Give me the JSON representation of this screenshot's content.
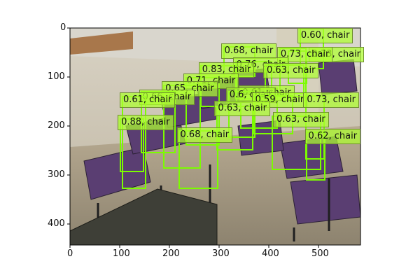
{
  "figure": {
    "xticks": [
      "0",
      "100",
      "200",
      "300",
      "400",
      "500"
    ],
    "yticks": [
      "0",
      "100",
      "200",
      "300",
      "400"
    ]
  },
  "detections": [
    {
      "label": "0.60, chair",
      "bx": 462,
      "by": 0,
      "bw": 50,
      "bh": 84,
      "lx": 458,
      "ly": 0
    },
    {
      "label": "0.73, chair",
      "bx": 438,
      "by": 45,
      "bw": 40,
      "bh": 68,
      "lx": 480,
      "ly": 38
    },
    {
      "label": "0.73, chair",
      "bx": 421,
      "by": 40,
      "bw": 55,
      "bh": 100,
      "lx": 417,
      "ly": 38
    },
    {
      "label": "0.68, chair",
      "bx": 309,
      "by": 37,
      "bw": 65,
      "bh": 62,
      "lx": 304,
      "ly": 31
    },
    {
      "label": "0.76, chair",
      "bx": 332,
      "by": 66,
      "bw": 75,
      "bh": 79,
      "lx": 328,
      "ly": 59
    },
    {
      "label": "0.63, chair",
      "bx": 392,
      "by": 74,
      "bw": 80,
      "bh": 60,
      "lx": 389,
      "ly": 71
    },
    {
      "label": "0.83, chair",
      "bx": 262,
      "by": 75,
      "bw": 75,
      "bh": 85,
      "lx": 259,
      "ly": 69
    },
    {
      "label": "0.71, chair",
      "bx": 232,
      "by": 99,
      "bw": 70,
      "bh": 140,
      "lx": 228,
      "ly": 92
    },
    {
      "label": "0.65, chair",
      "bx": 188,
      "by": 115,
      "bw": 75,
      "bh": 170,
      "lx": 185,
      "ly": 108
    },
    {
      "label": "0.61, chair",
      "bx": 343,
      "by": 121,
      "bw": 75,
      "bh": 84,
      "lx": 340,
      "ly": 116
    },
    {
      "label": "0.6, chair",
      "bx": 318,
      "by": 128,
      "bw": 56,
      "bh": 95,
      "lx": 314,
      "ly": 120
    },
    {
      "label": "0.59, chair",
      "bx": 370,
      "by": 136,
      "bw": 80,
      "bh": 80,
      "lx": 366,
      "ly": 130
    },
    {
      "label": "0.73, chair",
      "bx": 473,
      "by": 136,
      "bw": 40,
      "bh": 131,
      "lx": 470,
      "ly": 130
    },
    {
      "label": "0.66, chair",
      "bx": 143,
      "by": 128,
      "bw": 70,
      "bh": 126,
      "lx": 139,
      "ly": 125
    },
    {
      "label": "0.61, chair",
      "bx": 104,
      "by": 137,
      "bw": 50,
      "bh": 190,
      "lx": 100,
      "ly": 130
    },
    {
      "label": "0.63, chair",
      "bx": 295,
      "by": 157,
      "bw": 75,
      "bh": 91,
      "lx": 291,
      "ly": 148
    },
    {
      "label": "0.63, chair",
      "bx": 406,
      "by": 177,
      "bw": 100,
      "bh": 111,
      "lx": 409,
      "ly": 171
    },
    {
      "label": "0.88, chair",
      "bx": 100,
      "by": 183,
      "bw": 50,
      "bh": 110,
      "lx": 96,
      "ly": 176
    },
    {
      "label": "0.62, chair",
      "bx": 475,
      "by": 210,
      "bw": 40,
      "bh": 100,
      "lx": 473,
      "ly": 204
    },
    {
      "label": "0.68, chair",
      "bx": 219,
      "by": 207,
      "bw": 80,
      "bh": 120,
      "lx": 215,
      "ly": 201
    }
  ]
}
